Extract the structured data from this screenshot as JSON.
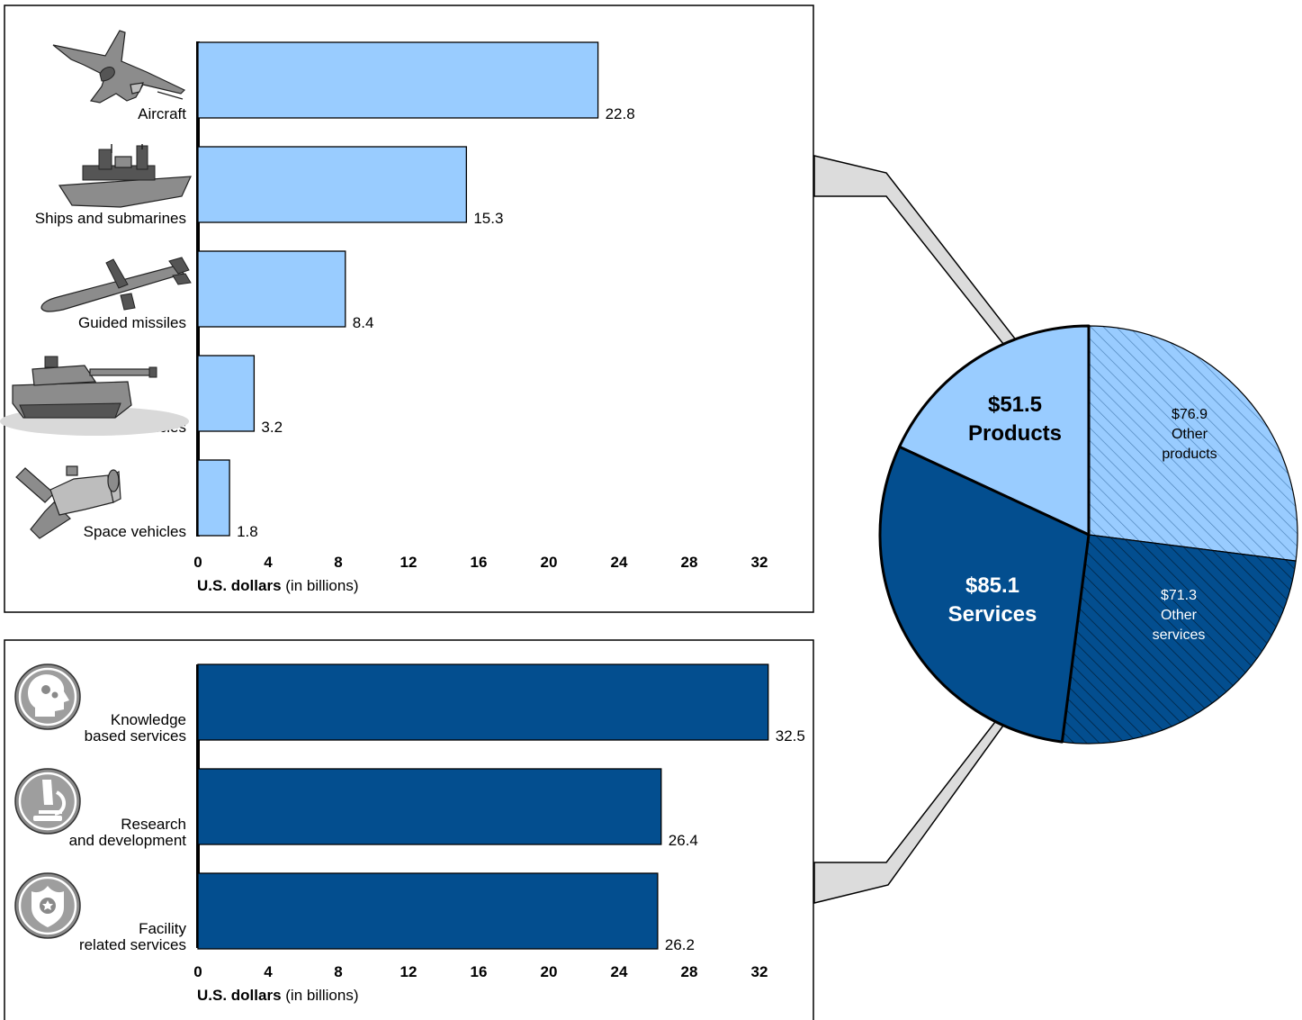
{
  "chart_data": [
    {
      "type": "bar",
      "orientation": "horizontal",
      "categories": [
        "Aircraft",
        "Ships and submarines",
        "Guided missiles",
        "Land vehicles",
        "Space vehicles"
      ],
      "values": [
        22.8,
        15.3,
        8.4,
        3.2,
        1.8
      ],
      "value_labels": [
        "22.8",
        "15.3",
        "8.4",
        "3.2",
        "1.8"
      ],
      "xlim": [
        0,
        32
      ],
      "xticks": [
        "0",
        "4",
        "8",
        "12",
        "16",
        "20",
        "24",
        "28",
        "32"
      ],
      "xlabel_bold": "U.S. dollars",
      "xlabel_rest": " (in billions)",
      "color": "#99ccff"
    },
    {
      "type": "bar",
      "orientation": "horizontal",
      "categories": [
        [
          "Knowledge",
          "based services"
        ],
        [
          "Research",
          "and development"
        ],
        [
          "Facility",
          "related services"
        ]
      ],
      "values": [
        32.5,
        26.4,
        26.2
      ],
      "value_labels": [
        "32.5",
        "26.4",
        "26.2"
      ],
      "xlim": [
        0,
        32
      ],
      "xticks": [
        "0",
        "4",
        "8",
        "12",
        "16",
        "20",
        "24",
        "28",
        "32"
      ],
      "xlabel_bold": "U.S. dollars",
      "xlabel_rest": " (in billions)",
      "color": "#034e8f"
    },
    {
      "type": "pie",
      "slices": [
        {
          "value": 51.5,
          "lines": [
            "$51.5",
            "Products"
          ],
          "color": "#99ccff",
          "hatched": false,
          "emphasis": true
        },
        {
          "value": 76.9,
          "lines": [
            "$76.9",
            "Other",
            "products"
          ],
          "color": "#99ccff",
          "hatched": true,
          "emphasis": false
        },
        {
          "value": 71.3,
          "lines": [
            "$71.3",
            "Other",
            "services"
          ],
          "color": "#034e8f",
          "hatched": true,
          "emphasis": false
        },
        {
          "value": 85.1,
          "lines": [
            "$85.1",
            "Services"
          ],
          "color": "#034e8f",
          "hatched": false,
          "emphasis": true
        }
      ]
    }
  ],
  "icons": {
    "products": [
      "aircraft-icon",
      "ship-icon",
      "missile-icon",
      "tank-icon",
      "satellite-icon"
    ],
    "services": [
      "brain-gears-icon",
      "microscope-icon",
      "police-badge-icon"
    ]
  }
}
